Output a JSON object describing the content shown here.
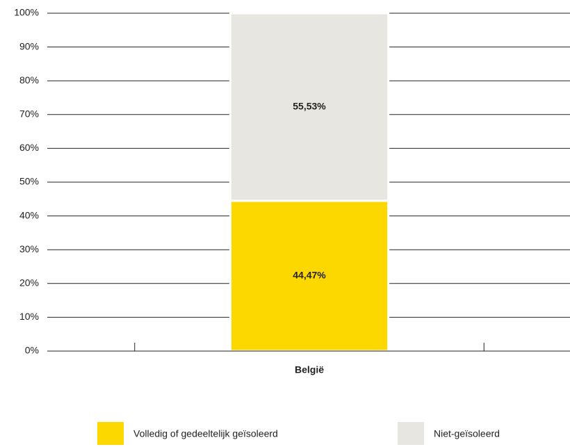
{
  "chart_data": {
    "type": "stacked_bar",
    "categories": [
      "België"
    ],
    "series": [
      {
        "name": "Volledig of gedeeltelijk geïsoleerd",
        "color": "#fdd800",
        "values": [
          44.47
        ],
        "value_labels": [
          "44,47%"
        ]
      },
      {
        "name": "Niet-geïsoleerd",
        "color": "#e8e6e1",
        "values": [
          55.53
        ],
        "value_labels": [
          "55,53%"
        ]
      }
    ],
    "ylim": [
      0,
      100
    ],
    "yticks": [
      {
        "value": 0,
        "label": "0%"
      },
      {
        "value": 10,
        "label": "10%"
      },
      {
        "value": 20,
        "label": "20%"
      },
      {
        "value": 30,
        "label": "30%"
      },
      {
        "value": 40,
        "label": "40%"
      },
      {
        "value": 50,
        "label": "50%"
      },
      {
        "value": 60,
        "label": "60%"
      },
      {
        "value": 70,
        "label": "70%"
      },
      {
        "value": 80,
        "label": "80%"
      },
      {
        "value": 90,
        "label": "90%"
      },
      {
        "value": 100,
        "label": "100%"
      }
    ],
    "grid": true,
    "legend": "bottom"
  }
}
